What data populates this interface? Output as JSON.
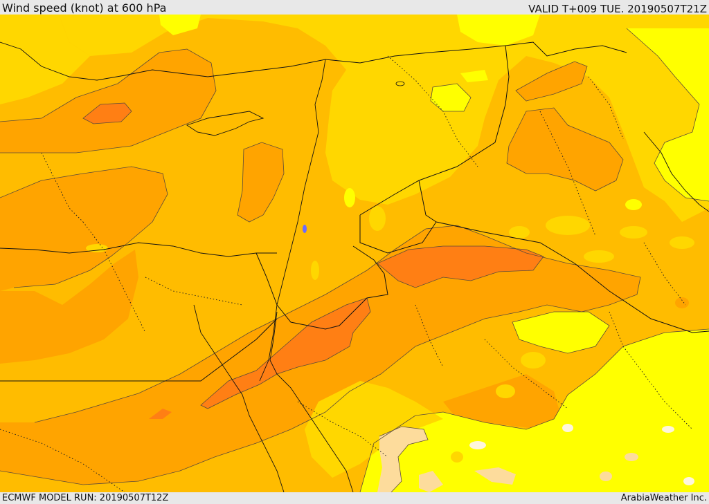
{
  "header": {
    "title": "Wind speed (knot) at 600 hPa",
    "valid": "VALID T+009 TUE. 20190507T21Z"
  },
  "footer": {
    "model_run": "ECMWF MODEL RUN: 20190507T12Z",
    "credit": "ArabiaWeather Inc."
  },
  "palette": {
    "light_peach": "#fddc9c",
    "yellow": "#ffff00",
    "gold": "#ffd700",
    "amber": "#ffbc00",
    "orange": "#ffa400",
    "dark_orange": "#ff7f14",
    "contour": "#5a4a3a",
    "border": "#111111"
  }
}
